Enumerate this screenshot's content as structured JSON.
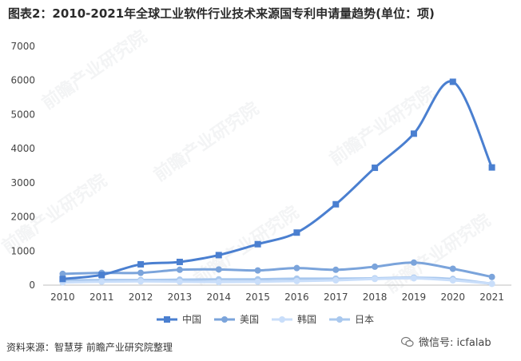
{
  "title": "图表2：2010-2021年全球工业软件行业技术来源国专利申请量趋势(单位：项)",
  "source": "资料来源：智慧芽 前瞻产业研究院整理",
  "wechat": "微信号: icfalab",
  "watermark": "前瞻产业研究院",
  "chart_data": {
    "type": "line",
    "title": "图表2：2010-2021年全球工业软件行业技术来源国专利申请量趋势(单位：项)",
    "categories": [
      "2010",
      "2011",
      "2012",
      "2013",
      "2014",
      "2015",
      "2016",
      "2017",
      "2018",
      "2019",
      "2020",
      "2021"
    ],
    "ylim": [
      0,
      7000
    ],
    "yticks": [
      0,
      1000,
      2000,
      3000,
      4000,
      5000,
      6000,
      7000
    ],
    "grid": false,
    "legend_position": "bottom",
    "series": [
      {
        "name": "中国",
        "color": "#4a7fd0",
        "marker": "square",
        "values": [
          180,
          300,
          610,
          680,
          880,
          1200,
          1540,
          2370,
          3440,
          4440,
          5960,
          3450
        ]
      },
      {
        "name": "美国",
        "color": "#7ba4db",
        "marker": "circle",
        "values": [
          330,
          360,
          360,
          450,
          460,
          430,
          500,
          450,
          540,
          660,
          480,
          240
        ]
      },
      {
        "name": "韩国",
        "color": "#c9defa",
        "marker": "circle",
        "values": [
          80,
          100,
          110,
          100,
          90,
          100,
          120,
          140,
          180,
          200,
          140,
          40
        ]
      },
      {
        "name": "日本",
        "color": "#a9c8ee",
        "marker": "circle",
        "values": [
          140,
          150,
          150,
          160,
          170,
          170,
          190,
          190,
          200,
          220,
          180,
          40
        ]
      }
    ]
  }
}
